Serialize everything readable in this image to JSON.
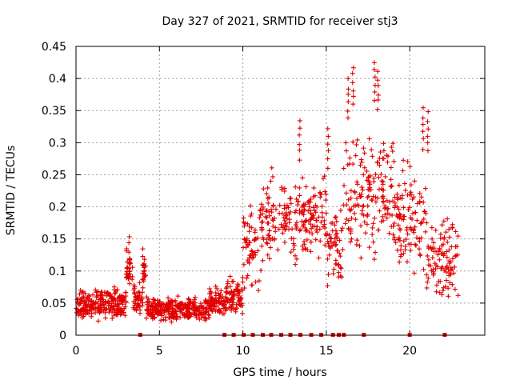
{
  "chart_data": {
    "type": "scatter",
    "title": "Day 327 of 2021, SRMTID for receiver stj3",
    "xlabel": "GPS time / hours",
    "ylabel": "SRMTID / TECUs",
    "xlim": [
      0,
      24.5
    ],
    "ylim": [
      0,
      0.45
    ],
    "xticks": [
      0,
      5,
      10,
      15,
      20
    ],
    "yticks": [
      0,
      0.05,
      0.1,
      0.15,
      0.2,
      0.25,
      0.3,
      0.35,
      0.4,
      0.45
    ],
    "xtick_labels": [
      "0",
      "5",
      "10",
      "15",
      "20"
    ],
    "ytick_labels": [
      "0",
      "0.05",
      "0.1",
      "0.15",
      "0.2",
      "0.25",
      "0.3",
      "0.35",
      "0.4",
      "0.45"
    ],
    "grid": true,
    "marker": "+",
    "color": "#e00000",
    "series": [
      {
        "name": "SRMTID",
        "segments": [
          {
            "t0": 0.0,
            "t1": 3.0,
            "center": 0.05,
            "spread": 0.02
          },
          {
            "t0": 3.0,
            "t1": 3.4,
            "center": 0.1,
            "spread": 0.03
          },
          {
            "t0": 3.4,
            "t1": 4.0,
            "center": 0.055,
            "spread": 0.02
          },
          {
            "t0": 4.0,
            "t1": 4.2,
            "center": 0.1,
            "spread": 0.02
          },
          {
            "t0": 4.2,
            "t1": 8.0,
            "center": 0.04,
            "spread": 0.015
          },
          {
            "t0": 8.0,
            "t1": 9.0,
            "center": 0.05,
            "spread": 0.02
          },
          {
            "t0": 9.0,
            "t1": 10.0,
            "center": 0.06,
            "spread": 0.025
          },
          {
            "t0": 10.0,
            "t1": 11.0,
            "center": 0.14,
            "spread": 0.06
          },
          {
            "t0": 11.0,
            "t1": 15.0,
            "center": 0.18,
            "spread": 0.06
          },
          {
            "t0": 15.0,
            "t1": 16.0,
            "center": 0.14,
            "spread": 0.05
          },
          {
            "t0": 16.0,
            "t1": 19.0,
            "center": 0.22,
            "spread": 0.08
          },
          {
            "t0": 19.0,
            "t1": 21.0,
            "center": 0.18,
            "spread": 0.07
          },
          {
            "t0": 21.0,
            "t1": 22.9,
            "center": 0.12,
            "spread": 0.05
          }
        ],
        "spikes": [
          {
            "x": 3.2,
            "y": 0.157
          },
          {
            "x": 4.0,
            "y": 0.135
          },
          {
            "x": 13.4,
            "y": 0.337
          },
          {
            "x": 15.1,
            "y": 0.325
          },
          {
            "x": 16.3,
            "y": 0.4
          },
          {
            "x": 16.6,
            "y": 0.422
          },
          {
            "x": 17.9,
            "y": 0.428
          },
          {
            "x": 18.1,
            "y": 0.415
          },
          {
            "x": 20.8,
            "y": 0.355
          },
          {
            "x": 21.1,
            "y": 0.35
          }
        ]
      }
    ],
    "zero_markers_x": [
      3.85,
      8.9,
      9.45,
      10.05,
      10.6,
      11.2,
      11.7,
      12.3,
      12.85,
      13.45,
      14.1,
      14.7,
      15.4,
      15.75,
      16.05,
      17.25,
      20.0,
      22.1
    ]
  }
}
